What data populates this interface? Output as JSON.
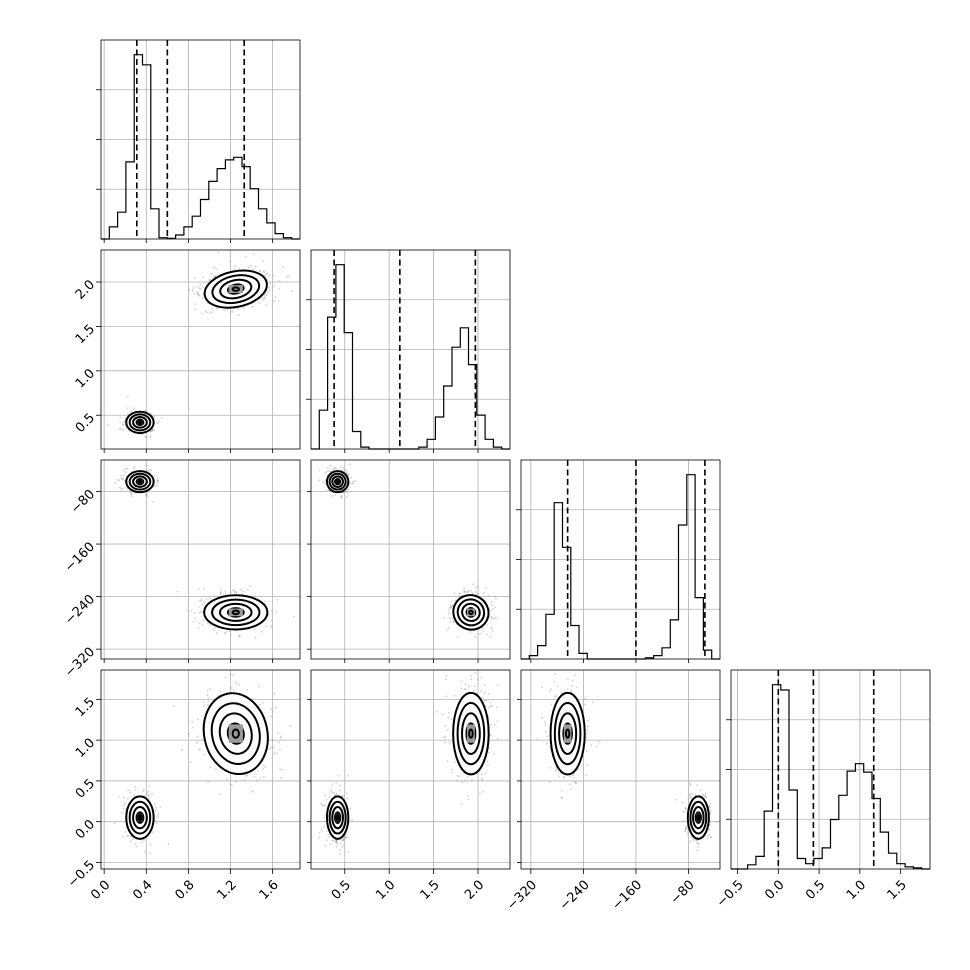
{
  "chart_data": {
    "type": "corner",
    "title": "",
    "grid": true,
    "parameters": [
      {
        "index": 0,
        "range": [
          -0.03,
          1.86
        ],
        "ticks": [
          0.0,
          0.4,
          0.8,
          1.2,
          1.6
        ],
        "tick_labels": [
          "0.0",
          "0.4",
          "0.8",
          "1.2",
          "1.6"
        ]
      },
      {
        "index": 1,
        "range": [
          0.12,
          2.36
        ],
        "ticks": [
          0.5,
          1.0,
          1.5,
          2.0
        ],
        "tick_labels": [
          "0.5",
          "1.0",
          "1.5",
          "2.0"
        ]
      },
      {
        "index": 2,
        "range": [
          -335,
          -32
        ],
        "ticks": [
          -320,
          -240,
          -160,
          -80
        ],
        "tick_labels": [
          "−320",
          "−240",
          "−160",
          "−80"
        ]
      },
      {
        "index": 3,
        "range": [
          -0.58,
          1.86
        ],
        "ticks": [
          -0.5,
          0.0,
          0.5,
          1.0,
          1.5
        ],
        "tick_labels": [
          "−0.5",
          "0.0",
          "0.5",
          "1.0",
          "1.5"
        ]
      }
    ],
    "quantiles": [
      [
        0.31,
        0.6,
        1.33
      ],
      [
        0.38,
        1.12,
        1.97
      ],
      [
        -264,
        -160,
        -55
      ],
      [
        0.0,
        0.43,
        1.17
      ]
    ],
    "histograms": [
      {
        "param": 0,
        "bin_range": [
          -0.03,
          1.86
        ],
        "counts": [
          0,
          18,
          40,
          115,
          275,
          260,
          45,
          2,
          1,
          6,
          18,
          34,
          59,
          86,
          105,
          118,
          122,
          108,
          75,
          45,
          24,
          8,
          2,
          0
        ]
      },
      {
        "param": 1,
        "bin_range": [
          0.12,
          2.36
        ],
        "counts": [
          0,
          40,
          136,
          190,
          120,
          18,
          2,
          0,
          0,
          0,
          0,
          0,
          0,
          2,
          10,
          33,
          65,
          105,
          125,
          87,
          35,
          10,
          2,
          0
        ]
      },
      {
        "param": 2,
        "bin_range": [
          -335,
          -32
        ],
        "counts": [
          0,
          3,
          12,
          40,
          140,
          100,
          30,
          5,
          0,
          0,
          0,
          0,
          0,
          0,
          0,
          1,
          3,
          10,
          35,
          120,
          165,
          55,
          8,
          0
        ]
      },
      {
        "param": 3,
        "bin_range": [
          -0.58,
          1.86
        ],
        "counts": [
          0,
          0,
          4,
          12,
          55,
          175,
          170,
          75,
          10,
          5,
          10,
          20,
          47,
          70,
          93,
          100,
          92,
          67,
          35,
          15,
          5,
          2,
          1,
          0
        ]
      }
    ],
    "clusters": [
      {
        "means": [
          0.34,
          0.42,
          -65,
          0.05
        ],
        "stds": [
          0.065,
          0.06,
          8,
          0.13
        ],
        "weight": 0.45
      },
      {
        "means": [
          1.25,
          1.92,
          -264,
          1.08
        ],
        "stds": [
          0.15,
          0.1,
          13,
          0.25
        ],
        "weight": 0.55
      }
    ]
  }
}
